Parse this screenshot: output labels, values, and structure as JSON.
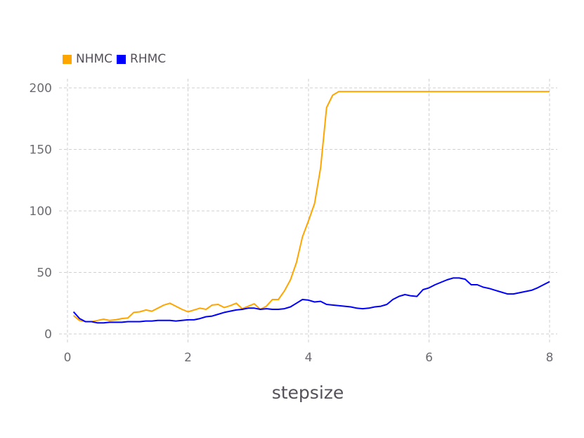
{
  "chart_data": {
    "type": "line",
    "xlabel": "stepsize",
    "ylabel": "",
    "xlim": [
      0,
      8
    ],
    "ylim": [
      0,
      200
    ],
    "xticks": [
      0,
      2,
      4,
      6,
      8
    ],
    "yticks": [
      0,
      50,
      100,
      150,
      200
    ],
    "grid": true,
    "legend_position": "top-left",
    "series": [
      {
        "name": "NHMC",
        "color": "#FFA500",
        "x": [
          0.1,
          0.2,
          0.3,
          0.4,
          0.5,
          0.6,
          0.7,
          0.8,
          0.9,
          1.0,
          1.1,
          1.2,
          1.3,
          1.4,
          1.5,
          1.6,
          1.7,
          1.8,
          1.9,
          2.0,
          2.1,
          2.2,
          2.3,
          2.4,
          2.5,
          2.6,
          2.7,
          2.8,
          2.9,
          3.0,
          3.1,
          3.2,
          3.3,
          3.4,
          3.5,
          3.6,
          3.7,
          3.8,
          3.9,
          4.0,
          4.1,
          4.2,
          4.3,
          4.4,
          4.5,
          4.6,
          4.7,
          4.8,
          4.9,
          5.0,
          5.5,
          6.0,
          6.5,
          7.0,
          7.5,
          8.0
        ],
        "values": [
          15,
          11,
          10,
          10,
          11,
          12,
          11,
          11.5,
          12.5,
          13,
          17.5,
          18,
          19.5,
          18.5,
          21,
          23.5,
          25,
          22.5,
          20,
          18,
          19.5,
          21,
          20,
          23.5,
          24,
          21.5,
          23,
          25,
          20.5,
          22.5,
          24.5,
          20,
          22.5,
          28,
          28,
          35,
          44,
          58,
          79,
          92,
          106,
          135,
          184,
          194,
          197,
          197,
          197,
          197,
          197,
          197,
          197,
          197,
          197,
          197,
          197,
          197
        ]
      },
      {
        "name": "RHMC",
        "color": "#0000FF",
        "x": [
          0.1,
          0.2,
          0.3,
          0.4,
          0.5,
          0.6,
          0.7,
          0.8,
          0.9,
          1.0,
          1.1,
          1.2,
          1.3,
          1.4,
          1.5,
          1.6,
          1.7,
          1.8,
          1.9,
          2.0,
          2.1,
          2.2,
          2.3,
          2.4,
          2.5,
          2.6,
          2.7,
          2.8,
          2.9,
          3.0,
          3.1,
          3.2,
          3.3,
          3.4,
          3.5,
          3.6,
          3.7,
          3.8,
          3.9,
          4.0,
          4.1,
          4.2,
          4.3,
          4.4,
          4.5,
          4.6,
          4.7,
          4.8,
          4.9,
          5.0,
          5.1,
          5.2,
          5.3,
          5.4,
          5.5,
          5.6,
          5.7,
          5.8,
          5.9,
          6.0,
          6.1,
          6.2,
          6.3,
          6.4,
          6.5,
          6.6,
          6.7,
          6.8,
          6.9,
          7.0,
          7.1,
          7.2,
          7.3,
          7.4,
          7.5,
          7.6,
          7.7,
          7.8,
          7.9,
          8.0
        ],
        "values": [
          18,
          12.5,
          10,
          10,
          9,
          9,
          9.5,
          9.5,
          9.5,
          10,
          10,
          10,
          10.5,
          10.5,
          11,
          11,
          11,
          10.5,
          11,
          11.5,
          11.5,
          12.5,
          14,
          14.5,
          16,
          17.5,
          18.5,
          19.5,
          20,
          21,
          21,
          20,
          20.5,
          20,
          20,
          20.5,
          22,
          25,
          28,
          27.5,
          26,
          26.5,
          24,
          23.5,
          23,
          22.5,
          22,
          21,
          20.5,
          21,
          22,
          22.5,
          24,
          28,
          30.5,
          32,
          31,
          30.5,
          36,
          37.5,
          40,
          42,
          44,
          45.5,
          45.5,
          44.5,
          40,
          40,
          38,
          37,
          35.5,
          34,
          32.5,
          32.5,
          33.5,
          34.5,
          35.5,
          37.5,
          40,
          42.5
        ]
      }
    ]
  }
}
